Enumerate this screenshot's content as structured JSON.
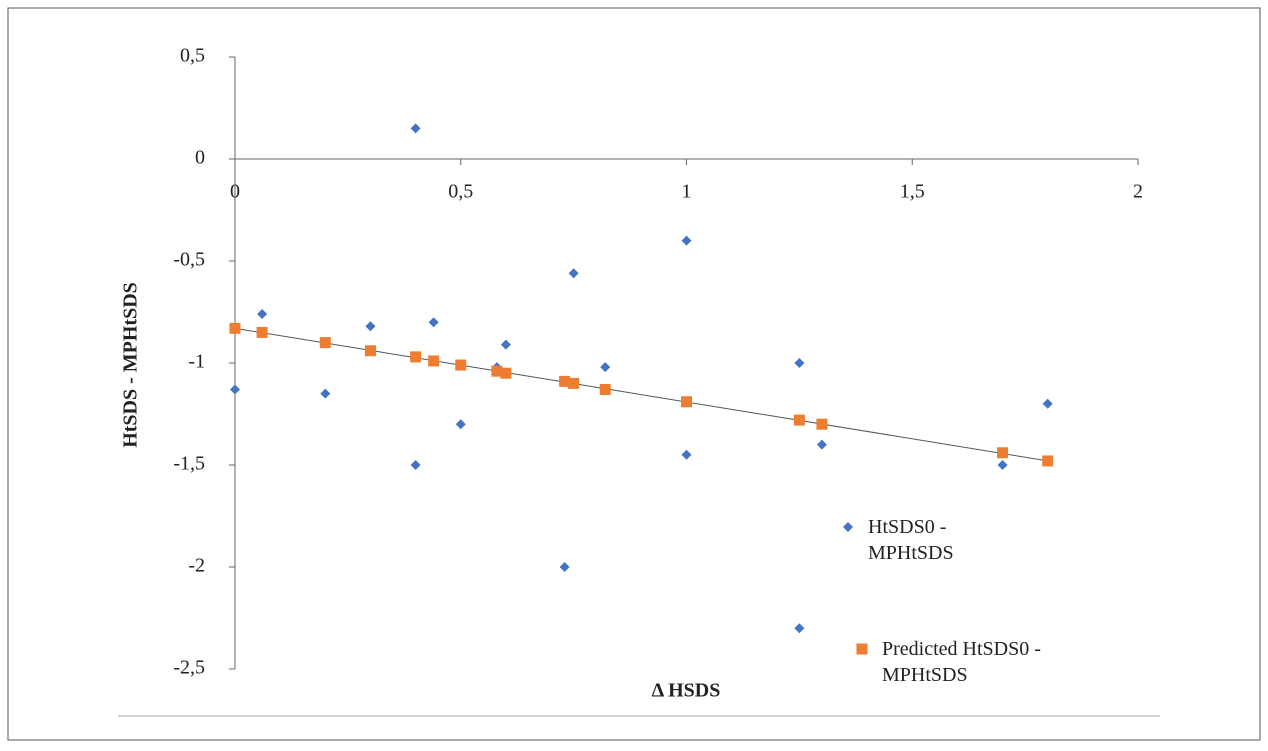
{
  "chart_data": {
    "type": "scatter",
    "x_label": "Δ HSDS",
    "y_label": "HtSDS - MPHtSDS",
    "xlim": [
      0,
      2
    ],
    "ylim": [
      -2.5,
      0.5
    ],
    "xticks": [
      0,
      {
        "value": 0.5,
        "label": "0,5"
      },
      1,
      {
        "value": 1.5,
        "label": "1,5"
      },
      2
    ],
    "yticks": [
      {
        "value": 0.5,
        "label": "0,5"
      },
      0,
      {
        "value": -0.5,
        "label": "-0,5"
      },
      -1,
      {
        "value": -1.5,
        "label": "-1,5"
      },
      -2,
      {
        "value": -2.5,
        "label": "-2,5"
      }
    ],
    "series": [
      {
        "name": "HtSDS0 - MPHtSDS",
        "color": "#4472c4",
        "marker": "diamond",
        "x": [
          0,
          0.06,
          0.2,
          0.3,
          0.4,
          0.4,
          0.44,
          0.5,
          0.58,
          0.6,
          0.73,
          0.75,
          0.75,
          0.82,
          1,
          1,
          1.25,
          1.25,
          1.3,
          1.7,
          1.8
        ],
        "values": [
          -1.13,
          -0.76,
          -1.15,
          -0.82,
          0.15,
          -1.5,
          -0.8,
          -1.3,
          -1.02,
          -0.91,
          -2.0,
          -0.56,
          -1.1,
          -1.02,
          -0.4,
          -1.45,
          -1.0,
          -2.3,
          -1.4,
          -1.5,
          -1.2
        ]
      },
      {
        "name": "Predicted HtSDS0 - MPHtSDS",
        "color": "#ed7d31",
        "marker": "square",
        "x": [
          0,
          0.06,
          0.2,
          0.3,
          0.4,
          0.44,
          0.5,
          0.58,
          0.6,
          0.73,
          0.75,
          0.82,
          1,
          1.25,
          1.3,
          1.7,
          1.8
        ],
        "values": [
          -0.83,
          -0.85,
          -0.9,
          -0.94,
          -0.97,
          -0.99,
          -1.01,
          -1.04,
          -1.05,
          -1.09,
          -1.1,
          -1.13,
          -1.19,
          -1.28,
          -1.3,
          -1.44,
          -1.48
        ]
      }
    ],
    "trendline": {
      "color": "#555555",
      "x": [
        0,
        1.8
      ],
      "values": [
        -0.83,
        -1.48
      ]
    }
  }
}
